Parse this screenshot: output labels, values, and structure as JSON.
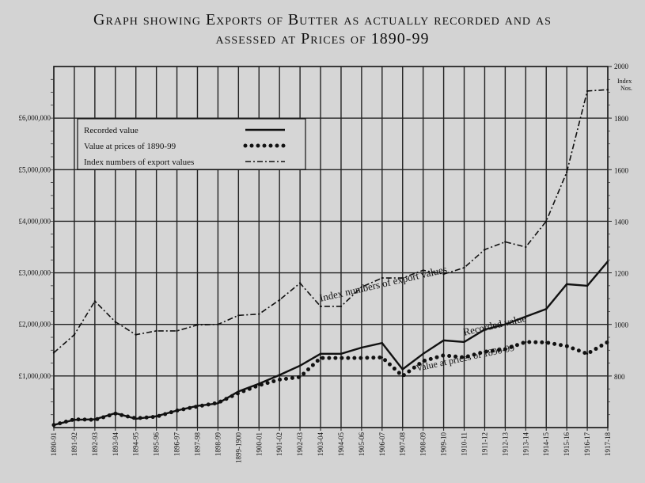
{
  "chart_data": {
    "type": "line",
    "title_line1": "Graph showing Exports of Butter as actually recorded and as",
    "title_line2": "assessed at Prices of 1890-99",
    "categories": [
      "1890-91",
      "1891-92",
      "1892-93",
      "1893-94",
      "1894-95",
      "1895-96",
      "1896-97",
      "1897-98",
      "1898-99",
      "1899-1900",
      "1900-01",
      "1901-02",
      "1902-03",
      "1903-04",
      "1904-05",
      "1905-06",
      "1906-07",
      "1907-08",
      "1908-09",
      "1909-10",
      "1910-11",
      "1911-12",
      "1912-13",
      "1913-14",
      "1914-15",
      "1915-16",
      "1916-17",
      "1917-18"
    ],
    "left_axis": {
      "unit": "£",
      "ylim": [
        0,
        7000000
      ],
      "ticks": [
        {
          "value": 1000000,
          "label": "£1,000,000"
        },
        {
          "value": 2000000,
          "label": "£2,000,000"
        },
        {
          "value": 3000000,
          "label": "£3,000,000"
        },
        {
          "value": 4000000,
          "label": "£4,000,000"
        },
        {
          "value": 5000000,
          "label": "£5,000,000"
        },
        {
          "value": 6000000,
          "label": "£6,000,000"
        }
      ]
    },
    "right_axis": {
      "ylim": [
        600,
        2000
      ],
      "label": "Index Nos.",
      "ticks": [
        {
          "value": 800,
          "label": "800"
        },
        {
          "value": 1000,
          "label": "1000"
        },
        {
          "value": 1200,
          "label": "1200"
        },
        {
          "value": 1400,
          "label": "1400"
        },
        {
          "value": 1600,
          "label": "1600"
        },
        {
          "value": 1800,
          "label": "1800"
        },
        {
          "value": 2000,
          "label": "2000"
        }
      ]
    },
    "series": [
      {
        "name": "Recorded value",
        "axis": "left",
        "style": "solid",
        "values": [
          50000,
          150000,
          160000,
          280000,
          170000,
          220000,
          330000,
          420000,
          470000,
          700000,
          850000,
          1020000,
          1200000,
          1430000,
          1430000,
          1550000,
          1640000,
          1130000,
          1430000,
          1690000,
          1660000,
          1900000,
          2000000,
          2150000,
          2300000,
          2780000,
          2750000,
          3220000
        ]
      },
      {
        "name": "Value at prices of 1890-99",
        "axis": "left",
        "style": "dotted",
        "values": [
          50000,
          160000,
          150000,
          270000,
          180000,
          210000,
          330000,
          410000,
          480000,
          670000,
          820000,
          930000,
          980000,
          1350000,
          1350000,
          1350000,
          1360000,
          1000000,
          1290000,
          1400000,
          1360000,
          1470000,
          1520000,
          1660000,
          1650000,
          1580000,
          1430000,
          1660000
        ]
      },
      {
        "name": "Index numbers of export values",
        "axis": "right",
        "style": "dash-dot",
        "values": [
          890,
          960,
          1090,
          1010,
          960,
          975,
          975,
          998,
          1000,
          1035,
          1040,
          1095,
          1160,
          1070,
          1070,
          1145,
          1180,
          1180,
          1210,
          1195,
          1220,
          1290,
          1320,
          1300,
          1400,
          1590,
          1905,
          1910
        ]
      }
    ],
    "annotations": [
      {
        "text": "Index numbers of export values",
        "series": "Index numbers of export values"
      },
      {
        "text": "Recorded value",
        "series": "Recorded value"
      },
      {
        "text": "Value at prices of 1890-99",
        "series": "Value at prices of 1890-99"
      }
    ],
    "legend_position": "top-left",
    "grid": true
  }
}
